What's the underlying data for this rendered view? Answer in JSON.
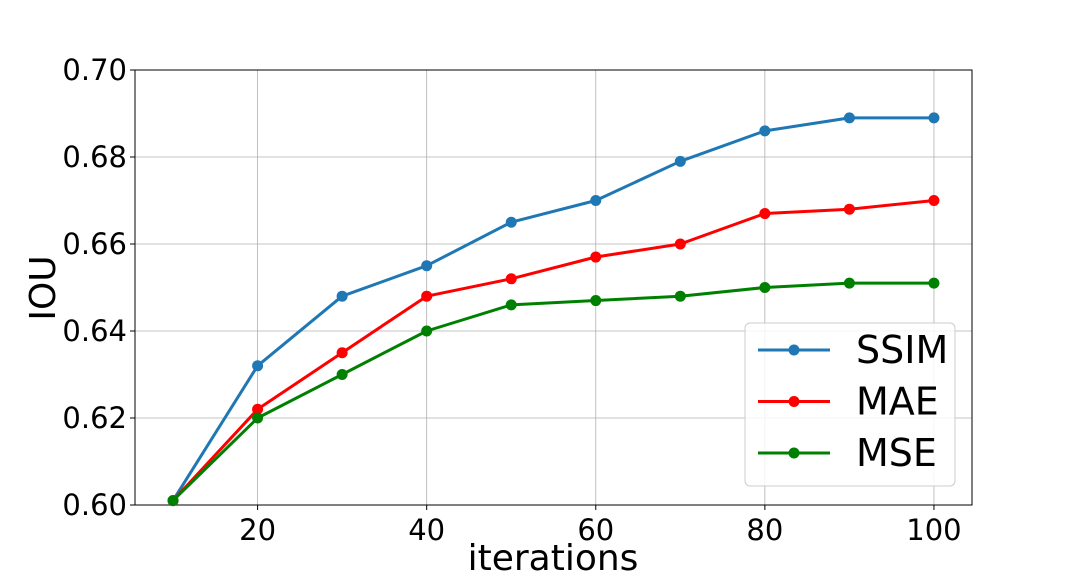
{
  "chart_data": {
    "type": "line",
    "title": "",
    "xlabel": "iterations",
    "ylabel": "IOU",
    "x": [
      10,
      20,
      30,
      40,
      50,
      60,
      70,
      80,
      90,
      100
    ],
    "series": [
      {
        "name": "SSIM",
        "color": "#1f77b4",
        "values": [
          0.601,
          0.632,
          0.648,
          0.655,
          0.665,
          0.67,
          0.679,
          0.686,
          0.689,
          0.689
        ]
      },
      {
        "name": "MAE",
        "color": "#ff0000",
        "values": [
          0.601,
          0.622,
          0.635,
          0.648,
          0.652,
          0.657,
          0.66,
          0.667,
          0.668,
          0.67
        ]
      },
      {
        "name": "MSE",
        "color": "#008000",
        "values": [
          0.601,
          0.62,
          0.63,
          0.64,
          0.646,
          0.647,
          0.648,
          0.65,
          0.651,
          0.651
        ]
      }
    ],
    "xticks": [
      20,
      40,
      60,
      80,
      100
    ],
    "xtick_labels": [
      "20",
      "40",
      "60",
      "80",
      "100"
    ],
    "yticks": [
      0.6,
      0.62,
      0.64,
      0.66,
      0.68,
      0.7
    ],
    "ytick_labels": [
      "0.60",
      "0.62",
      "0.64",
      "0.66",
      "0.68",
      "0.70"
    ],
    "xlim": [
      5.5,
      104.5
    ],
    "ylim": [
      0.6,
      0.7
    ],
    "grid": true,
    "legend_position": "lower-right"
  }
}
